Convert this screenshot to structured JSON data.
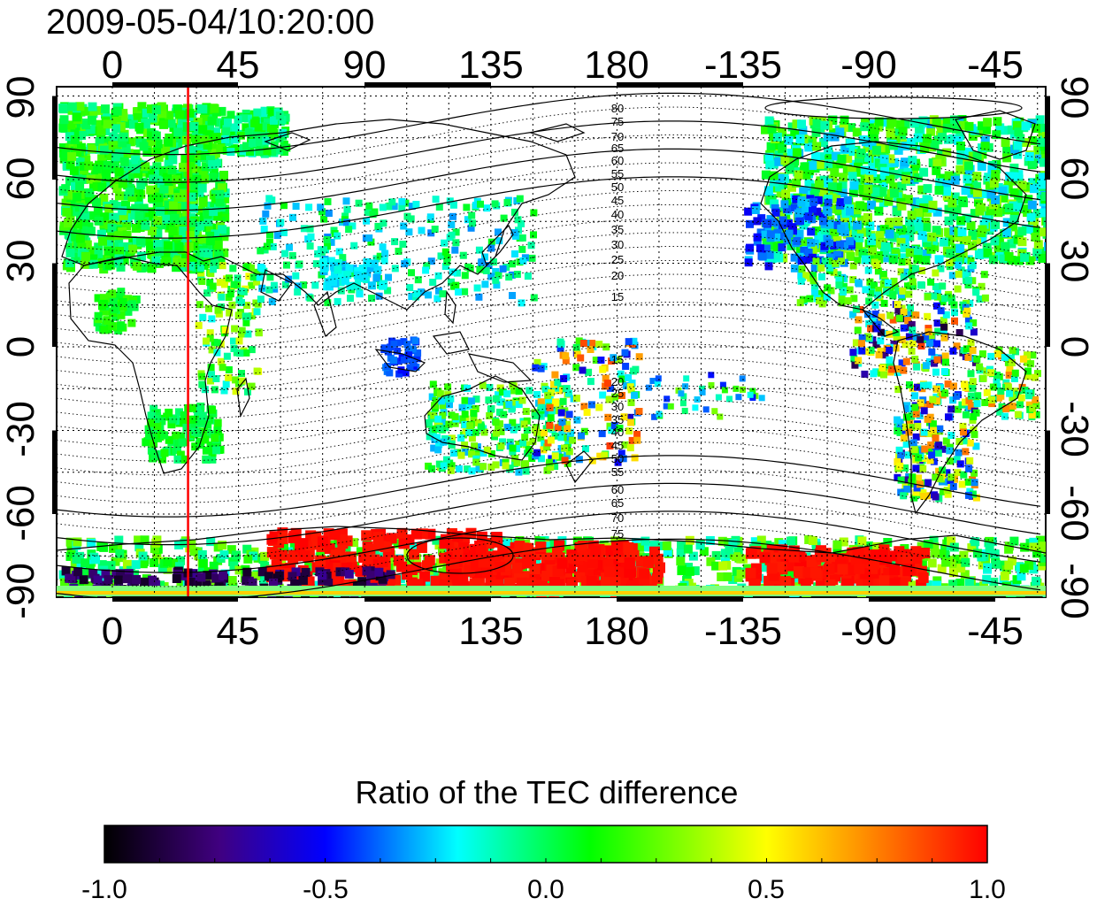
{
  "title": "2009-05-04/10:20:00",
  "map": {
    "lon_ticks": [
      "0",
      "45",
      "90",
      "135",
      "180",
      "-135",
      "-90",
      "-45"
    ],
    "lat_ticks": [
      "90",
      "60",
      "30",
      "0",
      "-30",
      "-60",
      "-90"
    ],
    "north_contour_labels": [
      "80",
      "75",
      "70",
      "65",
      "60",
      "55",
      "50",
      "45",
      "40",
      "35",
      "30",
      "25",
      "20",
      "15"
    ],
    "south_contour_labels": [
      "15",
      "20",
      "25",
      "30",
      "35",
      "40",
      "45",
      "50",
      "55",
      "60",
      "65",
      "70",
      "75"
    ],
    "marker_line_lon": 27,
    "marker_line_color": "#ff0000"
  },
  "colorbar": {
    "title": "Ratio of the TEC difference",
    "ticks": [
      "-1.0",
      "-0.5",
      "0.0",
      "0.5",
      "1.0"
    ],
    "range": [
      -1.0,
      1.0
    ],
    "colors": [
      "#000000",
      "#400080",
      "#0000ff",
      "#00ffff",
      "#00ff00",
      "#ffff00",
      "#ff0000"
    ]
  }
}
